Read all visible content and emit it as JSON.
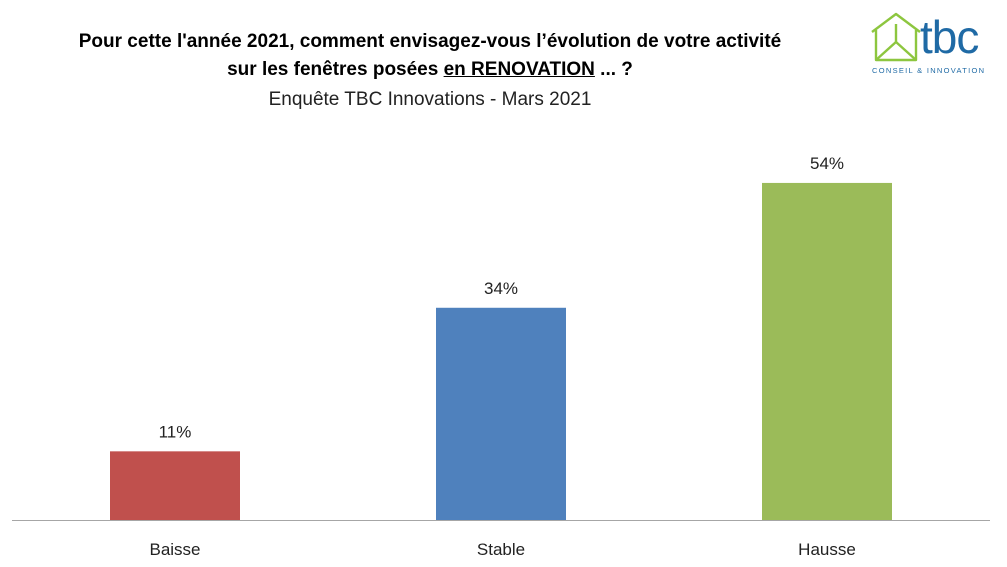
{
  "title": {
    "line1": "Pour cette l'année 2021, comment envisagez-vous l’évolution de votre activité",
    "line2_pre": "sur les fenêtres posées ",
    "line2_underlined": "en RENOVATION",
    "line2_post": " ... ?"
  },
  "subtitle": "Enquête TBC Innovations - Mars 2021",
  "logo": {
    "word": "tbc",
    "tagline": "CONSEIL & INNOVATION",
    "green": "#8dc63f",
    "blue": "#1f6aa5"
  },
  "chart_data": {
    "type": "bar",
    "categories": [
      "Baisse",
      "Stable",
      "Hausse"
    ],
    "values": [
      11,
      34,
      54
    ],
    "data_labels": [
      "11%",
      "34%",
      "54%"
    ],
    "colors": [
      "#c0504d",
      "#4f81bd",
      "#9bbb59"
    ],
    "ylim": [
      0,
      62
    ],
    "grid": false,
    "legend": "none"
  }
}
